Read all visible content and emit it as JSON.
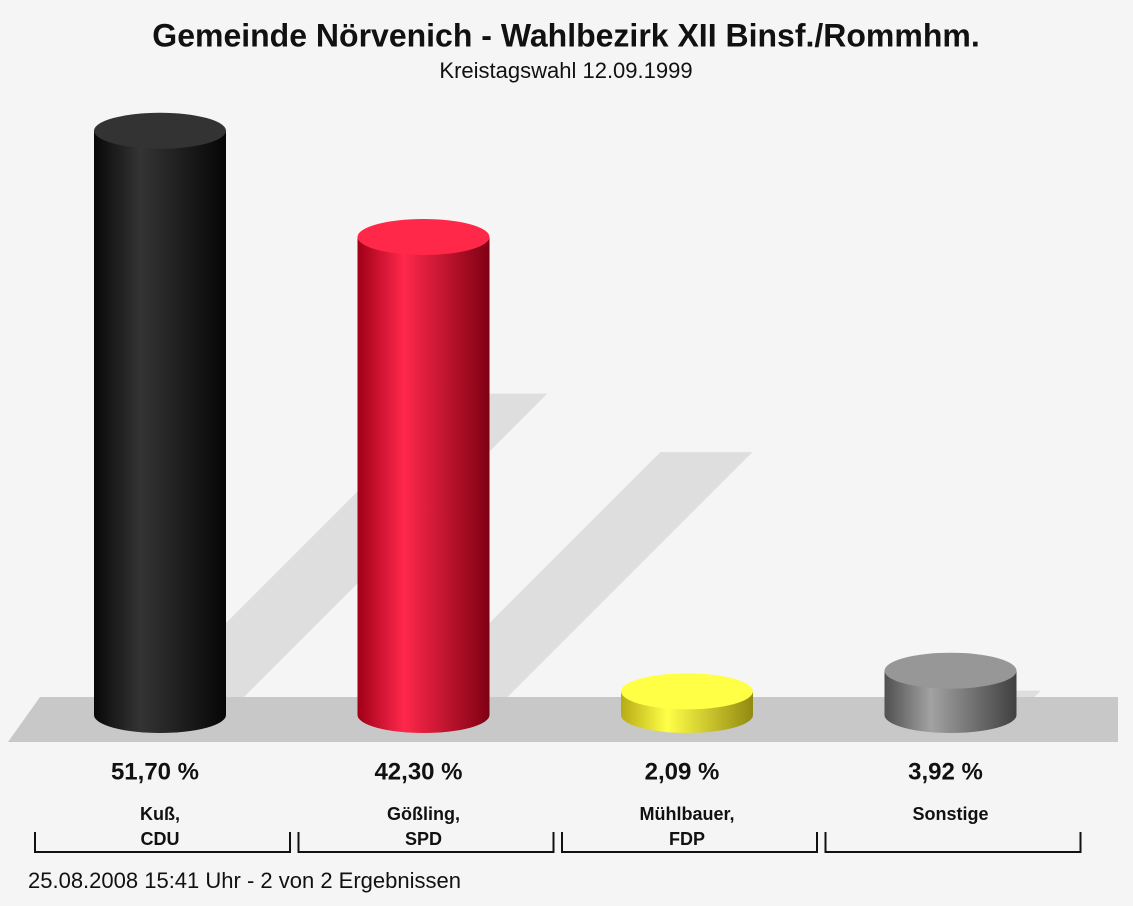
{
  "chart_data": {
    "type": "bar",
    "title": "Gemeinde Nörvenich - Wahlbezirk XII Binsf./Rommhm.",
    "subtitle": "Kreistagswahl 12.09.1999",
    "categories": [
      [
        "Kuß,",
        "CDU"
      ],
      [
        "Gößling,",
        "SPD"
      ],
      [
        "Mühlbauer,",
        "FDP"
      ],
      [
        "Sonstige"
      ]
    ],
    "values": [
      51.7,
      42.3,
      2.09,
      3.92
    ],
    "value_labels": [
      "51,70 %",
      "42,30 %",
      "2,09 %",
      "3,92 %"
    ],
    "colors": [
      "#0a0a0a",
      "#d4001e",
      "#f4e41c",
      "#6a6a6a"
    ],
    "footer": "25.08.2008 15:41 Uhr - 2 von 2 Ergebnissen"
  }
}
